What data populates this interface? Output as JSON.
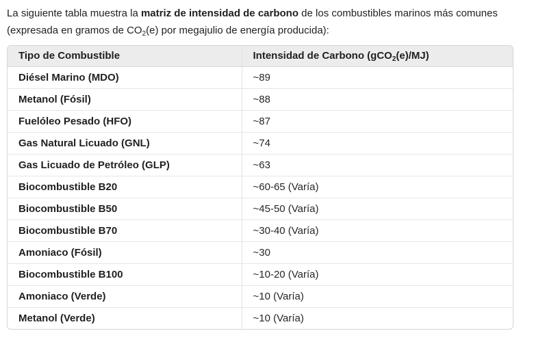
{
  "intro": {
    "part1": "La siguiente tabla muestra la ",
    "bold": "matriz de intensidad de carbono",
    "part2": " de los combustibles marinos más comunes (expresada en gramos de CO",
    "sub": "2",
    "part3": "(e) por megajulio de energía producida):"
  },
  "table": {
    "header_fuel": "Tipo de Combustible",
    "header_intensity_pre": "Intensidad de Carbono (gCO",
    "header_intensity_sub": "2",
    "header_intensity_post": "(e)/MJ)",
    "rows": [
      {
        "fuel": "Diésel Marino (MDO)",
        "intensity": "~89"
      },
      {
        "fuel": "Metanol (Fósil)",
        "intensity": "~88"
      },
      {
        "fuel": "Fuelóleo Pesado (HFO)",
        "intensity": "~87"
      },
      {
        "fuel": "Gas Natural Licuado (GNL)",
        "intensity": "~74"
      },
      {
        "fuel": "Gas Licuado de Petróleo (GLP)",
        "intensity": "~63"
      },
      {
        "fuel": "Biocombustible B20",
        "intensity": "~60-65 (Varía)"
      },
      {
        "fuel": "Biocombustible B50",
        "intensity": "~45-50 (Varía)"
      },
      {
        "fuel": "Biocombustible B70",
        "intensity": "~30-40 (Varía)"
      },
      {
        "fuel": "Amoniaco (Fósil)",
        "intensity": "~30"
      },
      {
        "fuel": "Biocombustible B100",
        "intensity": "~10-20 (Varía)"
      },
      {
        "fuel": "Amoniaco (Verde)",
        "intensity": "~10 (Varía)"
      },
      {
        "fuel": "Metanol (Verde)",
        "intensity": "~10 (Varía)"
      }
    ]
  },
  "colors": {
    "header_bg": "#ececec",
    "outer_border": "#d5d5d5",
    "row_border": "#e6e6e6",
    "text": "#1f1f1f"
  }
}
